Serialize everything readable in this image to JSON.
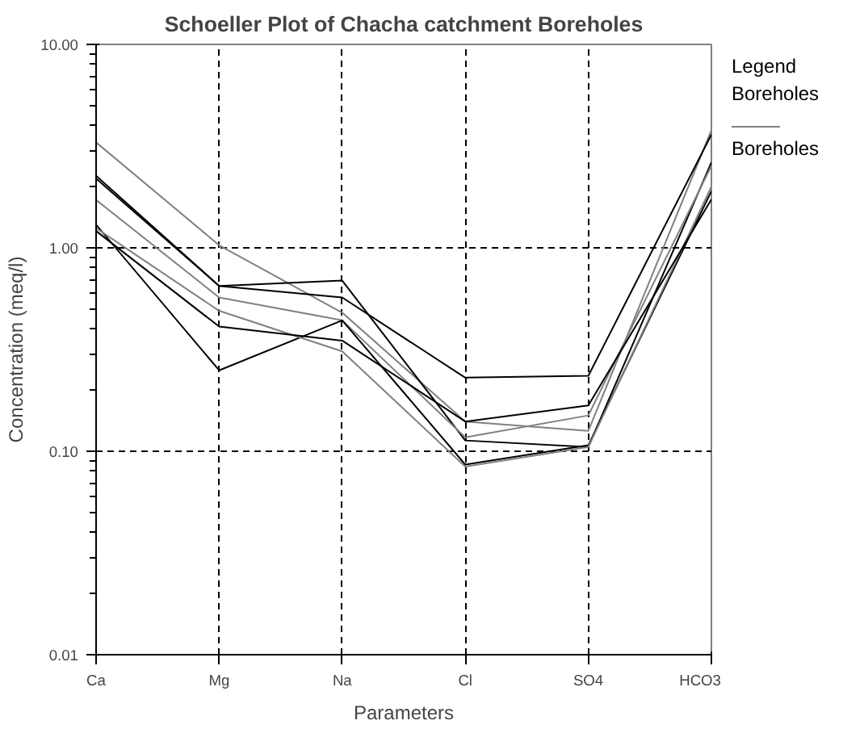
{
  "chart_data": {
    "type": "line",
    "title": "Schoeller Plot of Chacha catchment Boreholes",
    "xlabel": "Parameters",
    "ylabel": "Concentration (meq/l)",
    "categories": [
      "Ca",
      "Mg",
      "Na",
      "Cl",
      "SO4",
      "HCO3"
    ],
    "series": [
      {
        "name": "Boreholes",
        "color": "#808080",
        "values": [
          3.3,
          1.03,
          0.48,
          0.14,
          0.126,
          3.78
        ]
      },
      {
        "color": "#000000",
        "values": [
          2.26,
          0.65,
          0.69,
          0.113,
          0.105,
          2.63
        ]
      },
      {
        "color": "#000000",
        "values": [
          2.19,
          0.65,
          0.57,
          0.23,
          0.235,
          3.6
        ]
      },
      {
        "color": "#808080",
        "values": [
          1.72,
          0.57,
          0.44,
          0.117,
          0.15,
          2.53
        ]
      },
      {
        "color": "#000000",
        "values": [
          1.3,
          0.25,
          0.44,
          0.086,
          0.107,
          1.9
        ]
      },
      {
        "color": "#808080",
        "values": [
          1.25,
          0.49,
          0.31,
          0.084,
          0.105,
          2.0
        ]
      },
      {
        "color": "#000000",
        "values": [
          1.21,
          0.41,
          0.35,
          0.14,
          0.168,
          1.73
        ]
      }
    ],
    "log": true,
    "ylim": [
      0.01,
      10
    ],
    "yticks": [
      {
        "value": 0.01,
        "label": "0.01"
      },
      {
        "value": 0.1,
        "label": "0.10"
      },
      {
        "value": 1,
        "label": "1.00"
      },
      {
        "value": 10,
        "label": "10.00"
      }
    ],
    "grid": true,
    "line_style": "solid",
    "legend": "right",
    "legend_title": "Legend",
    "annotations": [
      "Boreholes"
    ]
  }
}
